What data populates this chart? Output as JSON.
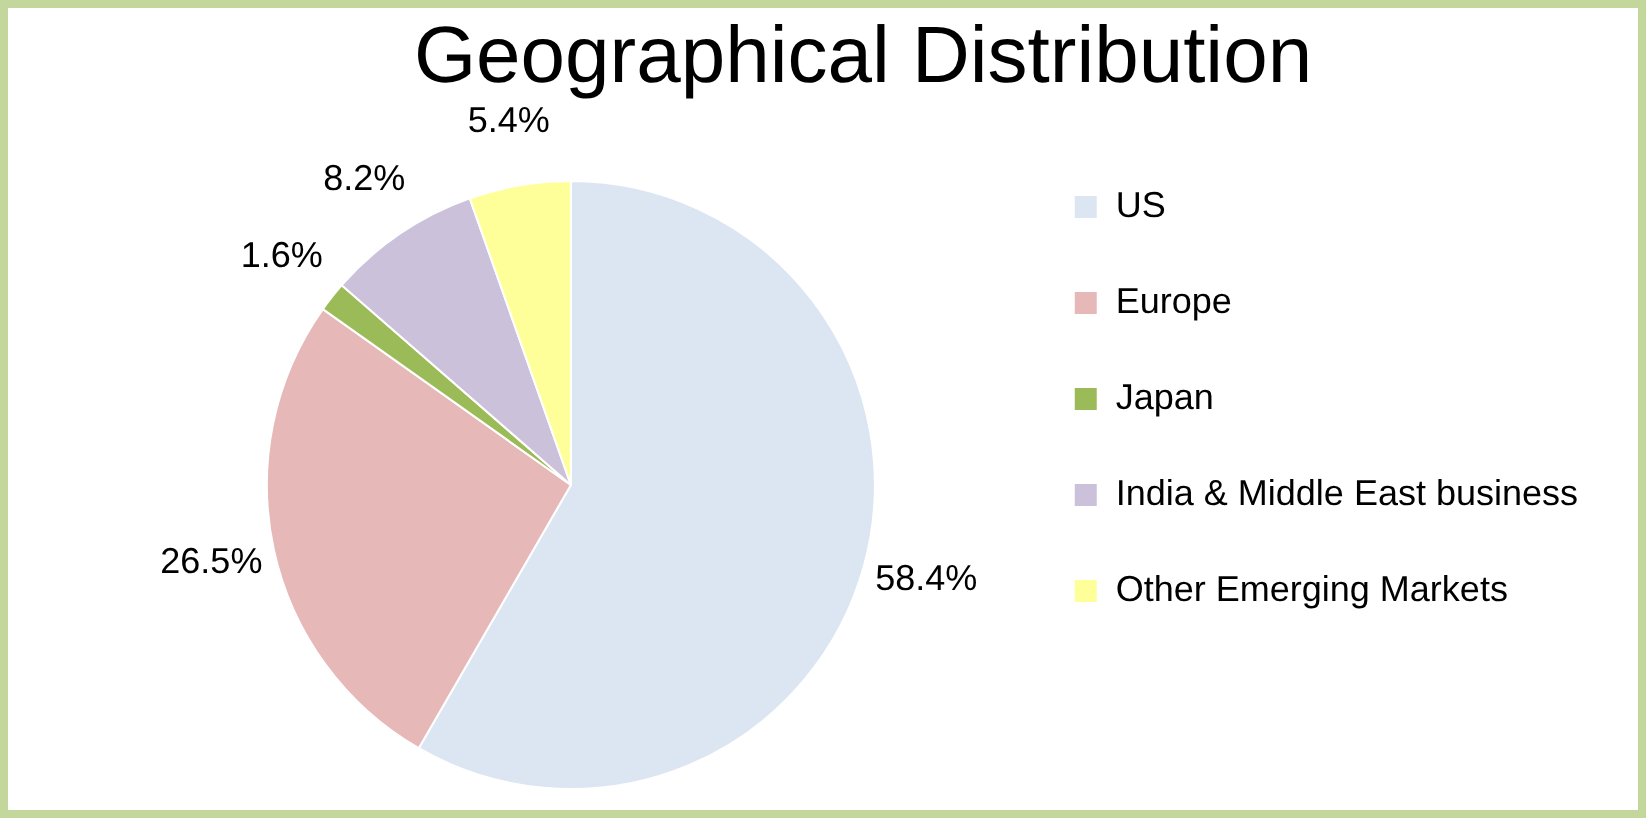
{
  "chart_data": {
    "type": "pie",
    "title": "Geographical Distribution",
    "categories": [
      "US",
      "Europe",
      "Japan",
      "India & Middle East business",
      "Other Emerging Markets"
    ],
    "values": [
      58.4,
      26.5,
      1.6,
      8.2,
      5.4
    ],
    "value_labels": [
      "58.4%",
      "26.5%",
      "1.6%",
      "8.2%",
      "5.4%"
    ],
    "colors": [
      "#dce6f2",
      "#e6b9b8",
      "#9bbb59",
      "#ccc1da",
      "#ffff99"
    ],
    "legend": "right"
  }
}
